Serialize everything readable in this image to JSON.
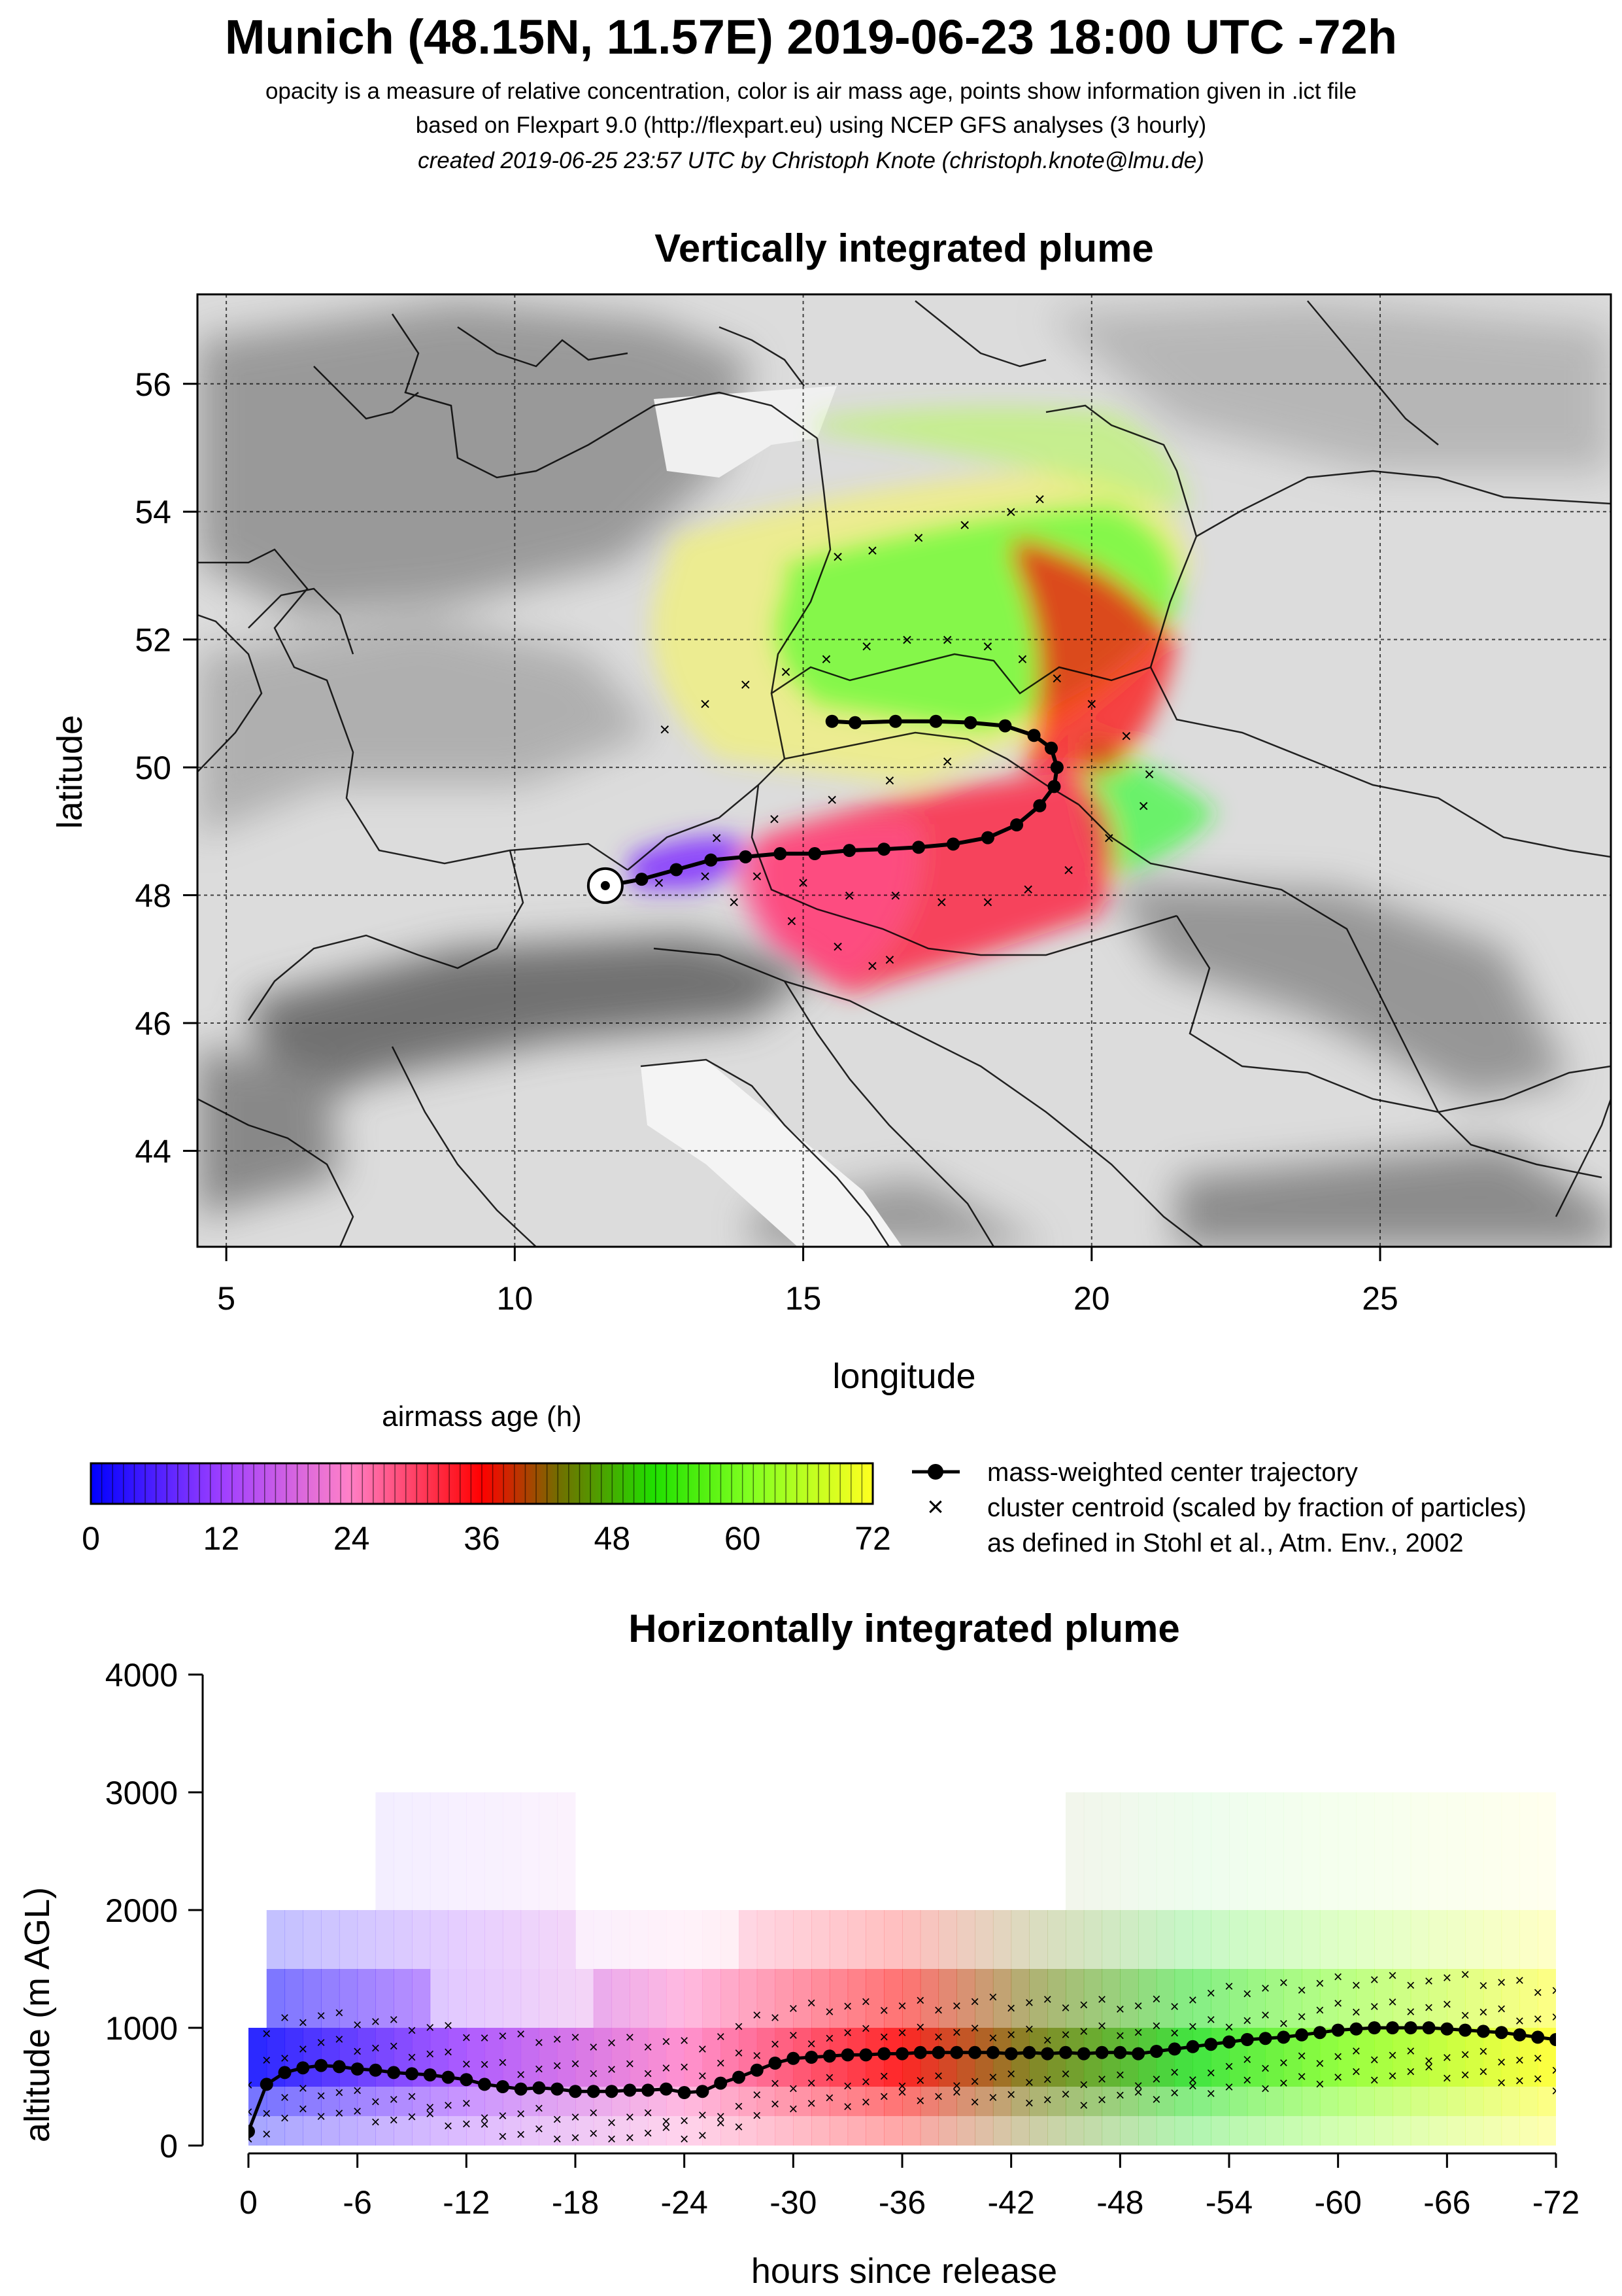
{
  "header": {
    "title": "Munich (48.15N, 11.57E) 2019-06-23 18:00 UTC -72h",
    "subtitle_1": "opacity is a measure of relative concentration, color is air mass age, points show information given in .ict file",
    "subtitle_2": "based on Flexpart 9.0 (http://flexpart.eu) using NCEP GFS analyses (3 hourly)",
    "subtitle_3": "created 2019-06-25 23:57 UTC by Christoph Knote (christoph.knote@lmu.de)"
  },
  "colors": {
    "age_0h": "#0000ff",
    "age_12h": "#a040ff",
    "age_24h": "#ff80c8",
    "age_36h": "#ff0000",
    "age_48h": "#20b000",
    "age_60h": "#50ff20",
    "age_72h": "#ffff20",
    "terrain": "#9a9a9a"
  },
  "chart_data": [
    {
      "type": "map",
      "title": "Vertically integrated plume",
      "xlabel": "longitude",
      "ylabel": "latitude",
      "xlim": [
        4.5,
        29.0
      ],
      "ylim": [
        42.5,
        57.4
      ],
      "x_ticks": [
        5,
        10,
        15,
        20,
        25
      ],
      "y_ticks": [
        44,
        46,
        48,
        50,
        52,
        54,
        56
      ],
      "release_point": {
        "name": "Munich",
        "lat": 48.15,
        "lon": 11.57
      },
      "series": [
        {
          "name": "mass-weighted center trajectory",
          "lon": [
            11.6,
            12.2,
            12.8,
            13.4,
            14.0,
            14.6,
            15.2,
            15.8,
            16.4,
            17.0,
            17.6,
            18.2,
            18.7,
            19.1,
            19.35,
            19.4,
            19.3,
            19.0,
            18.5,
            17.9,
            17.3,
            16.6,
            15.9,
            15.5
          ],
          "lat": [
            48.15,
            48.25,
            48.4,
            48.55,
            48.6,
            48.65,
            48.65,
            48.7,
            48.72,
            48.75,
            48.8,
            48.9,
            49.1,
            49.4,
            49.7,
            50.0,
            50.3,
            50.5,
            50.65,
            50.7,
            50.72,
            50.72,
            50.7,
            50.72
          ]
        },
        {
          "name": "cluster centroid (scaled by fraction of particles)",
          "lon": [
            12.5,
            13.3,
            14.2,
            15.0,
            15.8,
            16.6,
            17.4,
            18.2,
            18.9,
            19.6,
            20.3,
            20.9,
            21.0,
            20.6,
            20.0,
            19.4,
            18.8,
            18.2,
            17.5,
            16.8,
            16.1,
            15.4,
            14.7,
            14.0,
            13.3,
            12.6,
            13.8,
            14.8,
            15.6,
            16.2,
            16.5,
            15.6,
            16.2,
            17.0,
            17.8,
            18.6,
            19.1,
            13.5,
            14.5,
            15.5,
            16.5,
            17.5
          ],
          "lat": [
            48.2,
            48.3,
            48.3,
            48.2,
            48.0,
            48.0,
            47.9,
            47.9,
            48.1,
            48.4,
            48.9,
            49.4,
            49.9,
            50.5,
            51.0,
            51.4,
            51.7,
            51.9,
            52.0,
            52.0,
            51.9,
            51.7,
            51.5,
            51.3,
            51.0,
            50.6,
            47.9,
            47.6,
            47.2,
            46.9,
            47.0,
            53.3,
            53.4,
            53.6,
            53.8,
            54.0,
            54.2,
            48.9,
            49.2,
            49.5,
            49.8,
            50.1
          ]
        }
      ]
    },
    {
      "type": "colorbar",
      "title": "airmass age (h)",
      "ticks": [
        0,
        12,
        24,
        36,
        48,
        60,
        72
      ],
      "legend": [
        "mass-weighted center trajectory",
        "cluster centroid (scaled by fraction of particles)",
        "as defined in Stohl et al., Atm. Env., 2002"
      ]
    },
    {
      "type": "scatter",
      "title": "Horizontally integrated plume",
      "xlabel": "hours since release",
      "ylabel": "altitude (m AGL)",
      "xlim": [
        0,
        -72
      ],
      "ylim": [
        0,
        4000
      ],
      "x_ticks": [
        "0",
        "-6",
        "-12",
        "-18",
        "-24",
        "-30",
        "-36",
        "-42",
        "-48",
        "-54",
        "-60",
        "-66",
        "-72"
      ],
      "y_ticks": [
        "0",
        "1000",
        "2000",
        "3000",
        "4000"
      ],
      "series": [
        {
          "name": "mass-weighted center trajectory",
          "x": [
            0,
            -1,
            -2,
            -3,
            -4,
            -5,
            -6,
            -7,
            -8,
            -9,
            -10,
            -11,
            -12,
            -13,
            -14,
            -15,
            -16,
            -17,
            -18,
            -19,
            -20,
            -21,
            -22,
            -23,
            -24,
            -25,
            -26,
            -27,
            -28,
            -29,
            -30,
            -31,
            -32,
            -33,
            -34,
            -35,
            -36,
            -37,
            -38,
            -39,
            -40,
            -41,
            -42,
            -43,
            -44,
            -45,
            -46,
            -47,
            -48,
            -49,
            -50,
            -51,
            -52,
            -53,
            -54,
            -55,
            -56,
            -57,
            -58,
            -59,
            -60,
            -61,
            -62,
            -63,
            -64,
            -65,
            -66,
            -67,
            -68,
            -69,
            -70,
            -71,
            -72
          ],
          "y": [
            120,
            520,
            620,
            660,
            680,
            670,
            650,
            640,
            620,
            610,
            600,
            580,
            560,
            520,
            500,
            480,
            490,
            480,
            460,
            460,
            460,
            470,
            470,
            480,
            450,
            460,
            530,
            580,
            640,
            700,
            740,
            750,
            760,
            770,
            770,
            780,
            780,
            790,
            790,
            790,
            790,
            790,
            780,
            790,
            780,
            790,
            780,
            790,
            790,
            780,
            800,
            820,
            840,
            860,
            880,
            900,
            910,
            920,
            940,
            960,
            980,
            990,
            1000,
            1000,
            1000,
            1000,
            990,
            980,
            970,
            960,
            940,
            920,
            900
          ]
        }
      ]
    }
  ]
}
